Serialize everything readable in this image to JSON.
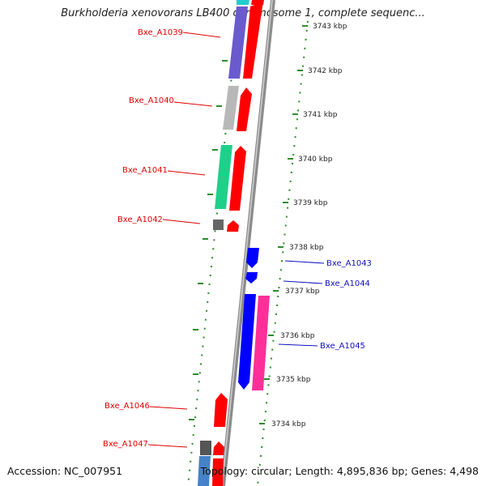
{
  "title": "Burkholderia xenovorans LB400 chromosome 1, complete sequenc...",
  "accession": "Accession: NC_007951",
  "topology": "Topology: circular; Length: 4,895,836 bp; Genes: 4,498",
  "colors": {
    "forward_label": "#e00000",
    "reverse_label": "#1010c0",
    "backbone": "#8c8c8c",
    "ticks": "#2e8b2e"
  },
  "ticks": [
    "3743 kbp",
    "3742 kbp",
    "3741 kbp",
    "3740 kbp",
    "3739 kbp",
    "3738 kbp",
    "3737 kbp",
    "3736 kbp",
    "3735 kbp",
    "3734 kbp"
  ],
  "genes": [
    {
      "label": "Bxe_A1039",
      "strand": "forward",
      "color": "#6a5acd"
    },
    {
      "label": "Bxe_A1040",
      "strand": "forward",
      "color": "#b8b8b8"
    },
    {
      "label": "Bxe_A1041",
      "strand": "forward",
      "color": "#1fd08a"
    },
    {
      "label": "Bxe_A1042",
      "strand": "forward",
      "color": "#666666"
    },
    {
      "label": "Bxe_A1043",
      "strand": "reverse",
      "color": "#0000ff"
    },
    {
      "label": "Bxe_A1044",
      "strand": "reverse",
      "color": "#0000ff"
    },
    {
      "label": "Bxe_A1045",
      "strand": "reverse",
      "color": "#0000ff"
    },
    {
      "label": "Bxe_A1046",
      "strand": "forward",
      "color": "#ff0000"
    },
    {
      "label": "Bxe_A1047",
      "strand": "forward",
      "color": "#555555"
    }
  ]
}
